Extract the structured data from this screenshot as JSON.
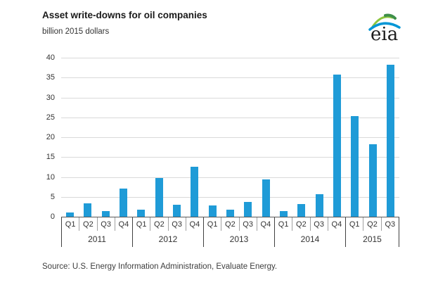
{
  "header": {
    "title": "Asset write-downs for oil companies",
    "subtitle": "billion 2015 dollars",
    "logo_text": "eia"
  },
  "chart_data": {
    "type": "bar",
    "title": "Asset write-downs for oil companies",
    "ylabel": "billion 2015 dollars",
    "xlabel": "",
    "ylim": [
      0,
      40
    ],
    "ytick_step": 5,
    "grid": true,
    "legend": "none",
    "bar_color": "#1f9bd7",
    "categories": [
      "2011 Q1",
      "2011 Q2",
      "2011 Q3",
      "2011 Q4",
      "2012 Q1",
      "2012 Q2",
      "2012 Q3",
      "2012 Q4",
      "2013 Q1",
      "2013 Q2",
      "2013 Q3",
      "2013 Q4",
      "2014 Q1",
      "2014 Q2",
      "2014 Q3",
      "2014 Q4",
      "2015 Q1",
      "2015 Q2",
      "2015 Q3"
    ],
    "values": [
      1.0,
      3.3,
      1.5,
      7.1,
      1.7,
      9.7,
      3.1,
      12.5,
      2.9,
      1.7,
      3.8,
      9.4,
      1.5,
      3.2,
      5.7,
      35.7,
      25.3,
      18.2,
      38.2
    ],
    "groups": [
      {
        "year": "2011",
        "quarters": [
          "Q1",
          "Q2",
          "Q3",
          "Q4"
        ],
        "values": [
          1.0,
          3.3,
          1.5,
          7.1
        ]
      },
      {
        "year": "2012",
        "quarters": [
          "Q1",
          "Q2",
          "Q3",
          "Q4"
        ],
        "values": [
          1.7,
          9.7,
          3.1,
          12.5
        ]
      },
      {
        "year": "2013",
        "quarters": [
          "Q1",
          "Q2",
          "Q3",
          "Q4"
        ],
        "values": [
          2.9,
          1.7,
          3.8,
          9.4
        ]
      },
      {
        "year": "2014",
        "quarters": [
          "Q1",
          "Q2",
          "Q3",
          "Q4"
        ],
        "values": [
          1.5,
          3.2,
          5.7,
          35.7
        ]
      },
      {
        "year": "2015",
        "quarters": [
          "Q1",
          "Q2",
          "Q3"
        ],
        "values": [
          25.3,
          18.2,
          38.2
        ]
      }
    ]
  },
  "footer": {
    "source": "Source: U.S. Energy Information Administration, Evaluate Energy."
  }
}
